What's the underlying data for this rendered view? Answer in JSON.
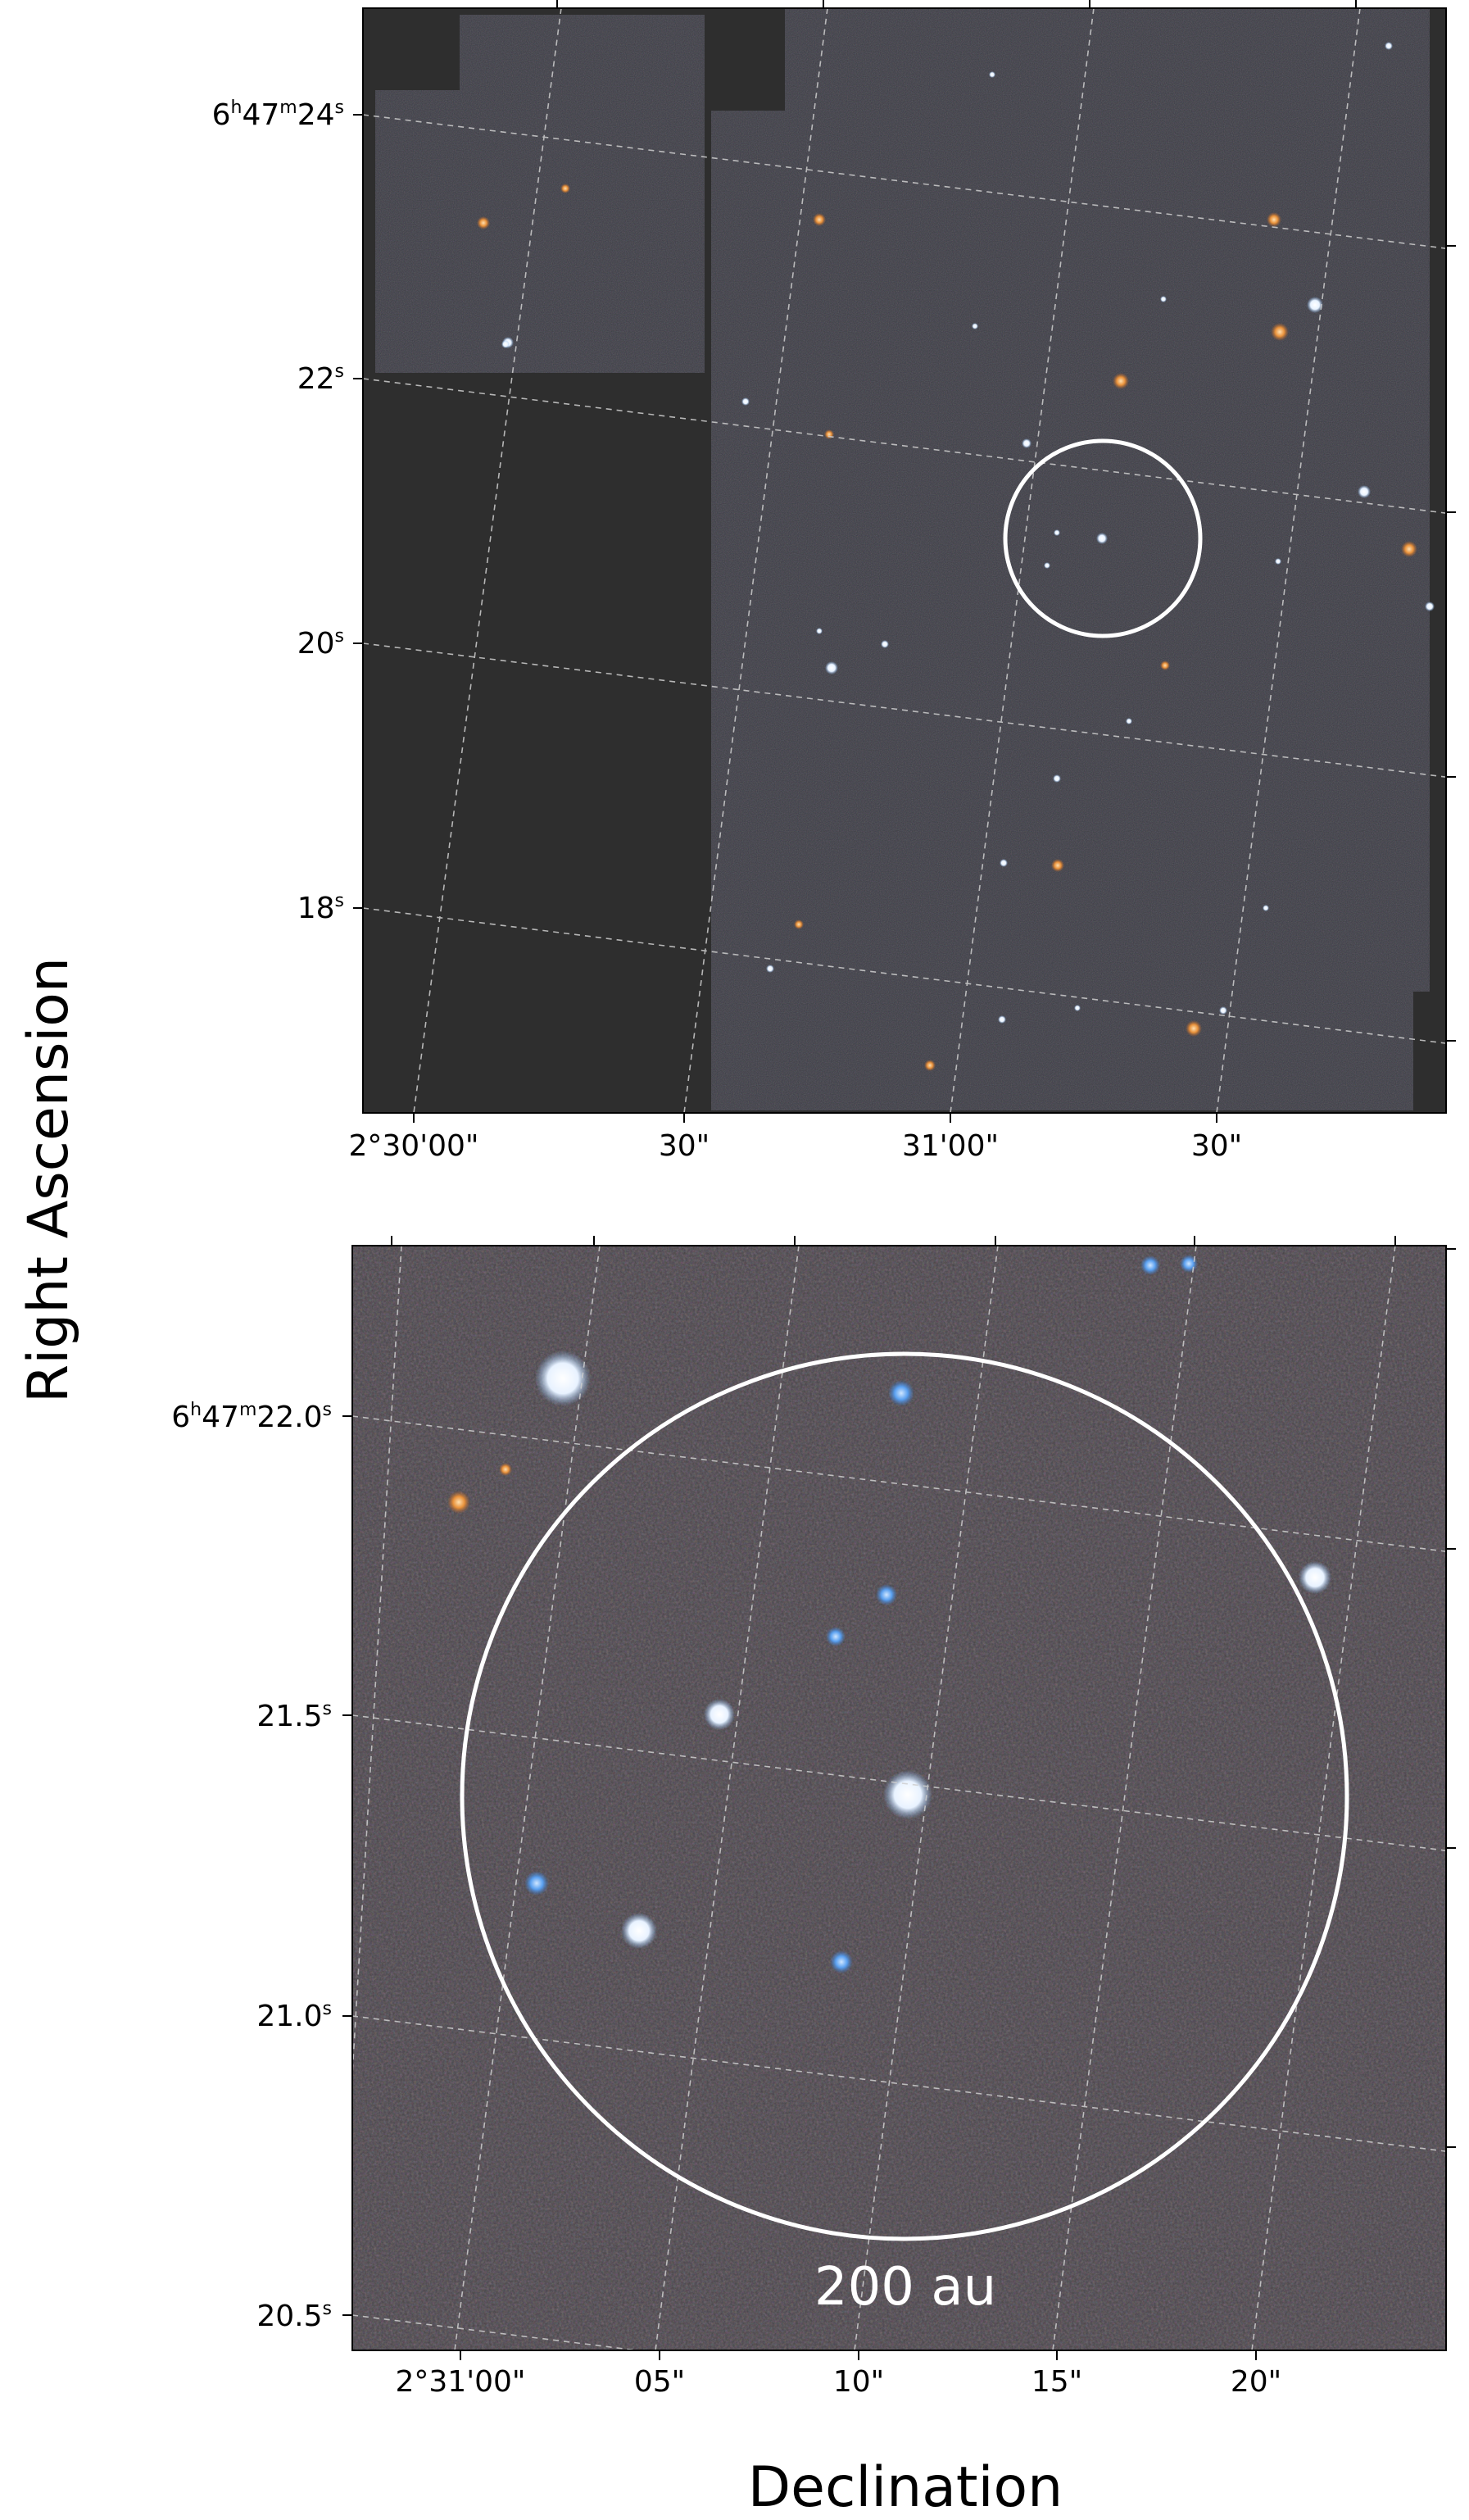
{
  "figure": {
    "ylabel": "Right Ascension",
    "xlabel": "Declination",
    "colors": {
      "background": "#ffffff",
      "panel_bg": "#2e2e2e",
      "sky": "#3a3c40",
      "grid": "#c8c8c8",
      "circle": "#ffffff"
    }
  },
  "top_panel": {
    "ra_ticks": [
      {
        "main": "6",
        "h": "h",
        "m_val": "47",
        "m": "m",
        "s_val": "24",
        "s": "s"
      },
      {
        "main": "22",
        "s": "s"
      },
      {
        "main": "20",
        "s": "s"
      },
      {
        "main": "18",
        "s": "s"
      }
    ],
    "dec_ticks": [
      "2°30'00\"",
      "30\"",
      "31'00\"",
      "30\""
    ]
  },
  "bottom_panel": {
    "ra_ticks": [
      {
        "main": "6",
        "h": "h",
        "m_val": "47",
        "m": "m",
        "s_val": "22.0",
        "s": "s"
      },
      {
        "main": "21.5",
        "s": "s"
      },
      {
        "main": "21.0",
        "s": "s"
      },
      {
        "main": "20.5",
        "s": "s"
      }
    ],
    "dec_ticks": [
      "2°31'00\"",
      "05\"",
      "10\"",
      "15\"",
      "20\""
    ],
    "circle_label": "200 au"
  }
}
